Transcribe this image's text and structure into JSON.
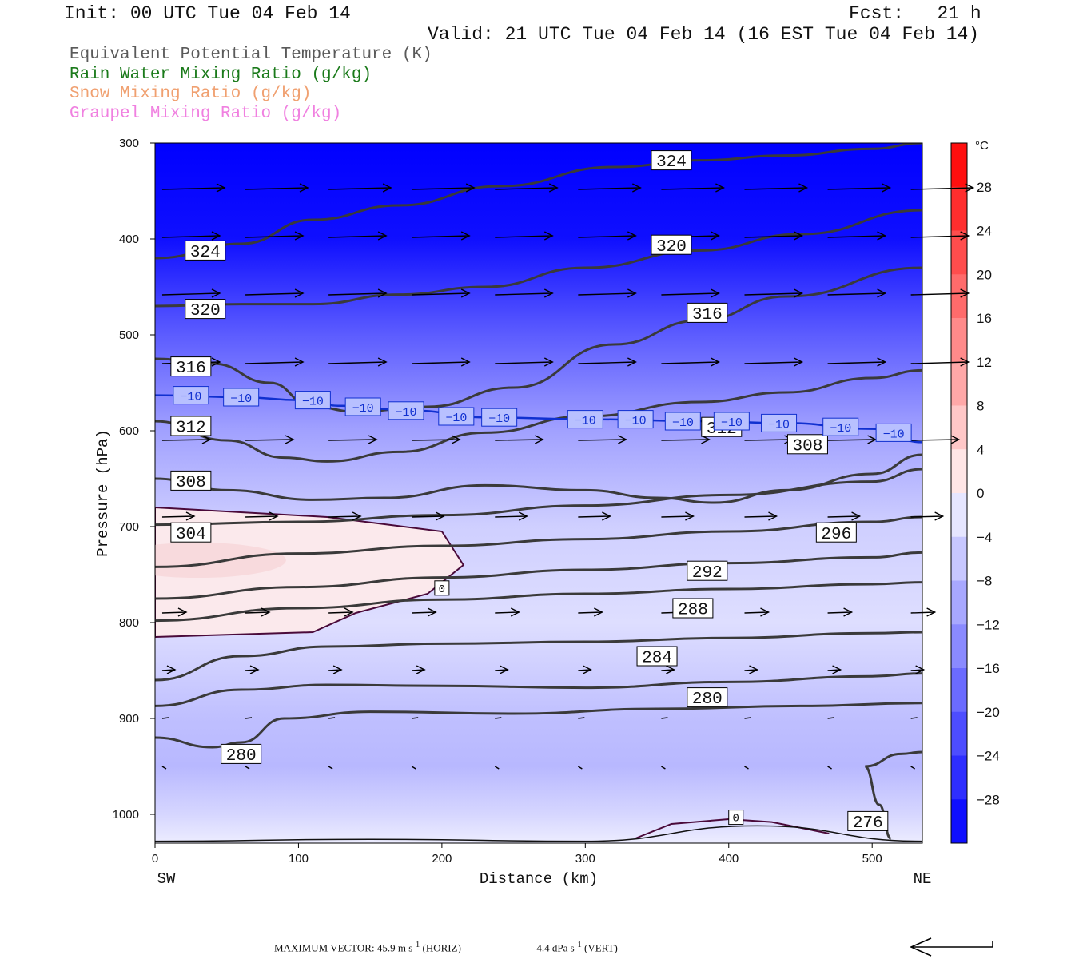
{
  "header": {
    "init": "Init: 00 UTC Tue 04 Feb 14",
    "fcst_label": "Fcst:",
    "fcst_value": "21 h",
    "valid": "Valid: 21 UTC Tue 04 Feb 14 (16 EST Tue 04 Feb 14)"
  },
  "legend": [
    {
      "text": "Equivalent Potential Temperature (K)",
      "color": "#5a5a5a"
    },
    {
      "text": "Rain Water Mixing Ratio (g/kg)",
      "color": "#1a7a1a"
    },
    {
      "text": "Snow Mixing Ratio (g/kg)",
      "color": "#f0a070"
    },
    {
      "text": "Graupel Mixing Ratio (g/kg)",
      "color": "#f080e0"
    }
  ],
  "footer": {
    "max_vector_label": "MAXIMUM VECTOR:",
    "horiz": "45.9 m s",
    "horiz_exp": "-1",
    "horiz_tag": "(HORIZ)",
    "vert": "4.4 dPa s",
    "vert_exp": "-1",
    "vert_tag": "(VERT)"
  },
  "chart_data": {
    "type": "cross-section contour",
    "xlabel": "Distance (km)",
    "ylabel": "Pressure (hPa)",
    "x_ticks": [
      0,
      100,
      200,
      300,
      400,
      500
    ],
    "x_range": [
      0,
      535
    ],
    "y_ticks": [
      300,
      400,
      500,
      600,
      700,
      800,
      900,
      1000
    ],
    "y_range": [
      300,
      1030
    ],
    "endpoint_left": "SW",
    "endpoint_right": "NE",
    "colorbar": {
      "unit": "°C",
      "tick_labels": [
        "28",
        "24",
        "20",
        "16",
        "12",
        "8",
        "4",
        "0",
        "−4",
        "−8",
        "−12",
        "−16",
        "−20",
        "−24",
        "−28"
      ],
      "tick_values": [
        28,
        24,
        20,
        16,
        12,
        8,
        4,
        0,
        -4,
        -8,
        -12,
        -16,
        -20,
        -24,
        -28
      ],
      "range": [
        -32,
        32
      ]
    },
    "temperature_fill": [
      {
        "p": 300,
        "t": -36
      },
      {
        "p": 400,
        "t": -30
      },
      {
        "p": 500,
        "t": -20
      },
      {
        "p": 600,
        "t": -11
      },
      {
        "p": 700,
        "t": -5
      },
      {
        "p": 800,
        "t": -3
      },
      {
        "p": 900,
        "t": -7
      },
      {
        "p": 950,
        "t": -8
      },
      {
        "p": 1000,
        "t": -4
      },
      {
        "p": 1030,
        "t": -1
      }
    ],
    "warm_region_points": [
      [
        0,
        680
      ],
      [
        120,
        690
      ],
      [
        200,
        705
      ],
      [
        215,
        740
      ],
      [
        190,
        770
      ],
      [
        140,
        790
      ],
      [
        110,
        810
      ],
      [
        0,
        815
      ]
    ],
    "theta_e_contours": [
      {
        "label": "324",
        "points": [
          [
            0,
            420
          ],
          [
            60,
            405
          ],
          [
            110,
            380
          ],
          [
            170,
            365
          ],
          [
            240,
            345
          ],
          [
            320,
            325
          ],
          [
            380,
            318
          ],
          [
            440,
            313
          ],
          [
            500,
            306
          ],
          [
            535,
            300
          ]
        ]
      },
      {
        "label": "320",
        "points": [
          [
            0,
            470
          ],
          [
            60,
            468
          ],
          [
            110,
            468
          ],
          [
            170,
            458
          ],
          [
            230,
            450
          ],
          [
            300,
            430
          ],
          [
            380,
            412
          ],
          [
            450,
            395
          ],
          [
            535,
            370
          ]
        ]
      },
      {
        "label": "316",
        "points": [
          [
            0,
            525
          ],
          [
            40,
            530
          ],
          [
            80,
            550
          ],
          [
            110,
            575
          ],
          [
            140,
            580
          ],
          [
            190,
            575
          ],
          [
            250,
            555
          ],
          [
            320,
            510
          ],
          [
            380,
            485
          ],
          [
            440,
            460
          ],
          [
            535,
            430
          ]
        ]
      },
      {
        "label": "312",
        "points": [
          [
            0,
            590
          ],
          [
            50,
            610
          ],
          [
            90,
            628
          ],
          [
            120,
            632
          ],
          [
            170,
            622
          ],
          [
            230,
            602
          ],
          [
            300,
            585
          ],
          [
            380,
            570
          ],
          [
            440,
            560
          ],
          [
            500,
            545
          ],
          [
            535,
            537
          ]
        ]
      },
      {
        "label": "308",
        "points": [
          [
            0,
            650
          ],
          [
            50,
            662
          ],
          [
            110,
            672
          ],
          [
            160,
            670
          ],
          [
            230,
            657
          ],
          [
            300,
            662
          ],
          [
            350,
            670
          ],
          [
            390,
            675
          ],
          [
            440,
            662
          ],
          [
            500,
            645
          ],
          [
            535,
            625
          ]
        ]
      },
      {
        "label": "304",
        "points": [
          [
            0,
            698
          ],
          [
            100,
            695
          ],
          [
            200,
            688
          ],
          [
            300,
            678
          ],
          [
            400,
            667
          ],
          [
            500,
            653
          ],
          [
            535,
            640
          ]
        ]
      },
      {
        "label": "296",
        "points": [
          [
            0,
            742
          ],
          [
            100,
            728
          ],
          [
            200,
            720
          ],
          [
            300,
            713
          ],
          [
            400,
            705
          ],
          [
            500,
            695
          ],
          [
            535,
            690
          ]
        ]
      },
      {
        "label": "292",
        "points": [
          [
            0,
            775
          ],
          [
            100,
            763
          ],
          [
            200,
            753
          ],
          [
            300,
            745
          ],
          [
            400,
            738
          ],
          [
            500,
            732
          ],
          [
            535,
            727
          ]
        ]
      },
      {
        "label": "288",
        "points": [
          [
            0,
            798
          ],
          [
            100,
            785
          ],
          [
            200,
            776
          ],
          [
            300,
            770
          ],
          [
            400,
            765
          ],
          [
            500,
            760
          ],
          [
            535,
            758
          ]
        ]
      },
      {
        "label": "284",
        "points": [
          [
            0,
            860
          ],
          [
            60,
            835
          ],
          [
            120,
            825
          ],
          [
            200,
            822
          ],
          [
            300,
            820
          ],
          [
            400,
            816
          ],
          [
            500,
            811
          ],
          [
            535,
            810
          ]
        ]
      },
      {
        "label": "280",
        "points": [
          [
            0,
            887
          ],
          [
            60,
            870
          ],
          [
            120,
            865
          ],
          [
            200,
            866
          ],
          [
            300,
            868
          ],
          [
            400,
            862
          ],
          [
            500,
            856
          ],
          [
            535,
            853
          ]
        ]
      },
      {
        "label": "280",
        "points": [
          [
            0,
            920
          ],
          [
            40,
            930
          ],
          [
            60,
            925
          ],
          [
            90,
            900
          ],
          [
            150,
            893
          ],
          [
            250,
            895
          ],
          [
            350,
            890
          ],
          [
            450,
            887
          ],
          [
            535,
            884
          ]
        ]
      },
      {
        "label": "276",
        "points": [
          [
            535,
            935
          ],
          [
            520,
            937
          ],
          [
            495,
            950
          ],
          [
            505,
            990
          ],
          [
            513,
            1025
          ]
        ]
      }
    ],
    "isotherm_minus10": [
      [
        0,
        563
      ],
      [
        60,
        565
      ],
      [
        100,
        568
      ],
      [
        130,
        574
      ],
      [
        180,
        579
      ],
      [
        230,
        586
      ],
      [
        300,
        588
      ],
      [
        380,
        590
      ],
      [
        440,
        592
      ],
      [
        500,
        598
      ],
      [
        535,
        612
      ]
    ],
    "wind_rows": [
      350,
      400,
      460,
      530,
      610,
      690,
      790,
      850,
      900,
      950
    ],
    "contour_labels_text": [
      "324",
      "324",
      "320",
      "320",
      "316",
      "316",
      "312",
      "312",
      "308",
      "308",
      "304",
      "296",
      "292",
      "288",
      "284",
      "280",
      "280",
      "276",
      "0",
      "0"
    ],
    "isotherm_label": "−10"
  }
}
